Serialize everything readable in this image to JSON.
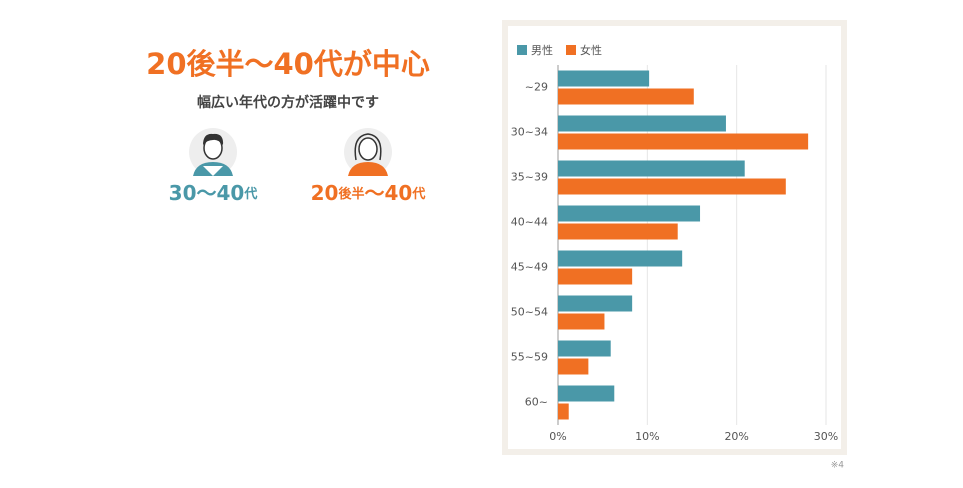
{
  "intro": {
    "title": "20後半〜40代が中心",
    "subtitle": "幅広い年代の方が活躍中です",
    "male_label": [
      "30〜40",
      "代"
    ],
    "female_label": [
      "20",
      "後半",
      "〜40",
      "代"
    ]
  },
  "chart_data": {
    "type": "hbar",
    "categories": [
      "~29",
      "30~34",
      "35~39",
      "40~44",
      "45~49",
      "50~54",
      "55~59",
      "60~"
    ],
    "series": [
      {
        "name": "男性",
        "color": "#4a98a8",
        "values": [
          10.2,
          18.8,
          20.9,
          15.9,
          13.9,
          8.3,
          5.9,
          6.3
        ]
      },
      {
        "name": "女性",
        "color": "#f07023",
        "values": [
          15.2,
          28.0,
          25.5,
          13.4,
          8.3,
          5.2,
          3.4,
          1.2
        ]
      }
    ],
    "xlim": [
      0,
      30
    ],
    "xticks": [
      {
        "value": 0,
        "label": "0%"
      },
      {
        "value": 10,
        "label": "10%"
      },
      {
        "value": 20,
        "label": "20%"
      },
      {
        "value": 30,
        "label": "30%"
      }
    ],
    "grid": true,
    "legend": "top-left"
  },
  "footnote": "※4"
}
